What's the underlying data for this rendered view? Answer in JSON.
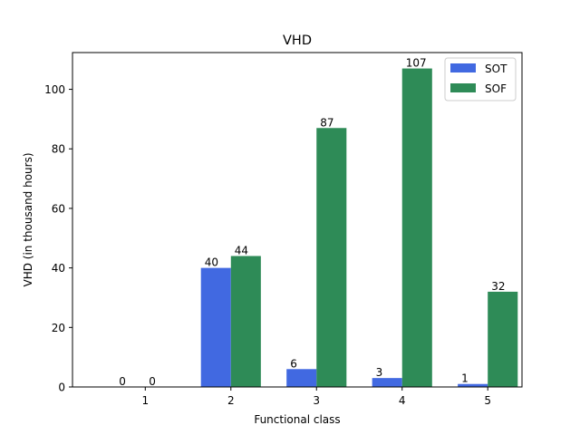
{
  "chart_data": {
    "type": "bar",
    "title": "VHD",
    "xlabel": "Functional class",
    "ylabel": "VHD (in thousand hours)",
    "categories": [
      "1",
      "2",
      "3",
      "4",
      "5"
    ],
    "series": [
      {
        "name": "SOT",
        "values": [
          0,
          40,
          6,
          3,
          1
        ],
        "labels": [
          "0",
          "40",
          "6",
          "3",
          "1"
        ],
        "color": "#4169e1"
      },
      {
        "name": "SOF",
        "values": [
          0,
          44,
          87,
          107,
          32
        ],
        "labels": [
          "0",
          "44",
          "87",
          "107",
          "32"
        ],
        "color": "#2e8b57"
      }
    ],
    "ylim": [
      0,
      112.35
    ],
    "yticks": [
      0,
      20,
      40,
      60,
      80,
      100
    ],
    "ytick_labels": [
      "0",
      "20",
      "40",
      "60",
      "80",
      "100"
    ],
    "grid": false,
    "legend_position": "top-right"
  }
}
